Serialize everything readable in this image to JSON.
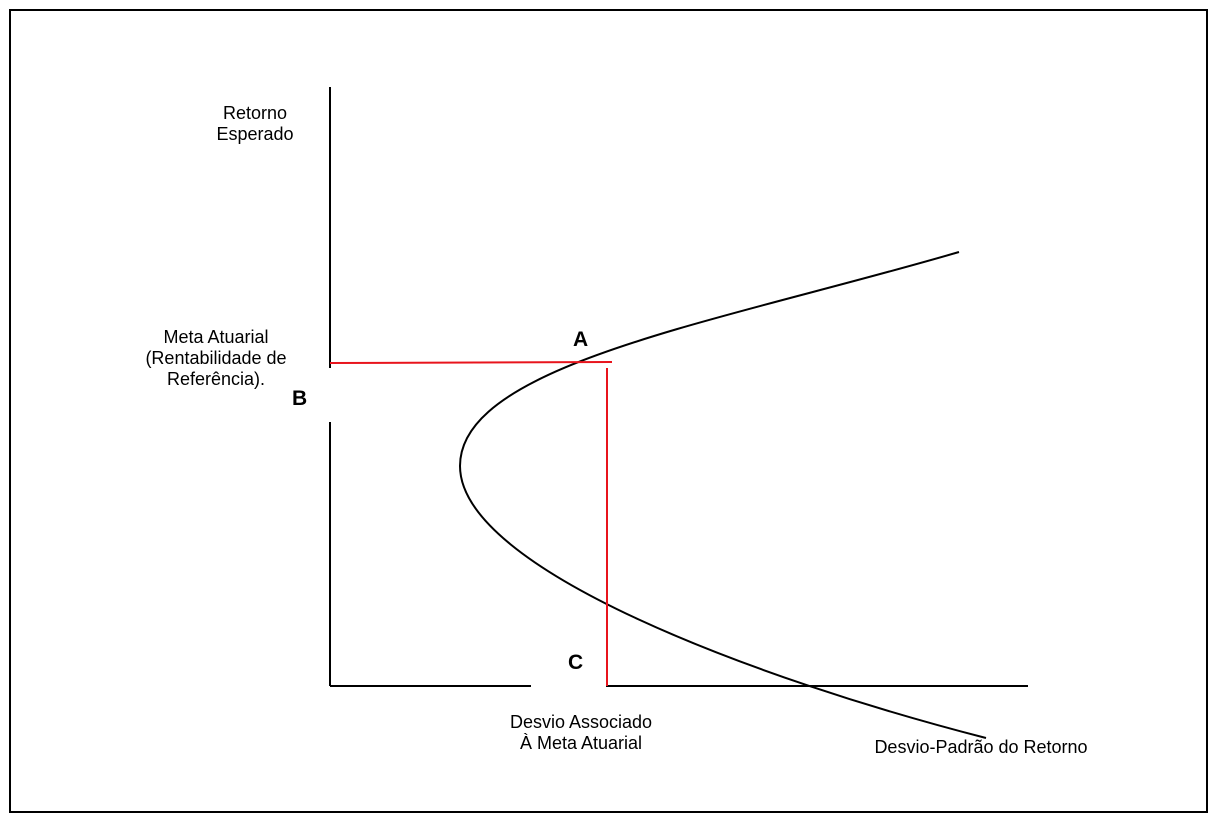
{
  "diagram": {
    "labels": {
      "y_axis": "Retorno\nEsperado",
      "target": "Meta Atuarial\n(Rentabilidade de\nReferência).",
      "target_deviation": "Desvio Associado\nÀ Meta Atuarial",
      "x_axis": "Desvio-Padrão do Retorno"
    },
    "points": {
      "a": "A",
      "b": "B",
      "c": "C"
    },
    "colors": {
      "axes": "#000000",
      "curve": "#000000",
      "guides": "#e8141c"
    }
  }
}
